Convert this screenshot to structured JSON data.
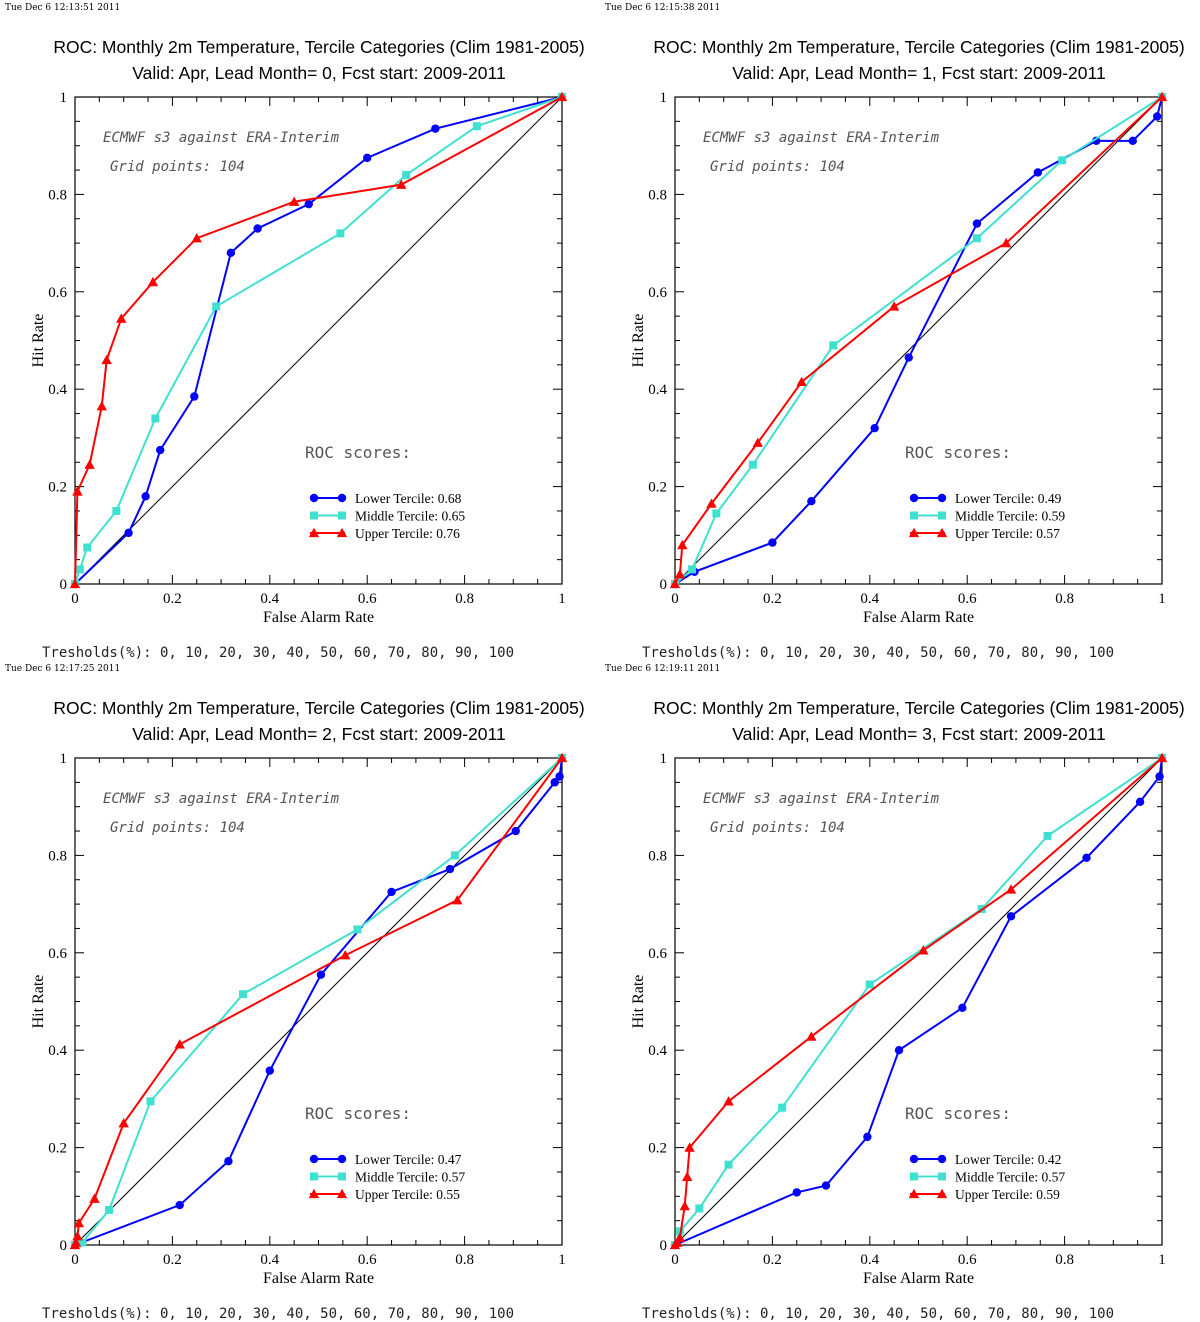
{
  "threshold_prefix": "Tresholds(%): ",
  "thresholds": [
    0,
    10,
    20,
    30,
    40,
    50,
    60,
    70,
    80,
    90,
    100
  ],
  "roc_scores_label": "ROC scores:",
  "colors": {
    "lower": "#0000ff",
    "middle": "#40e0d0",
    "upper": "#ff0000",
    "diagonal": "#000000"
  },
  "chart_data": [
    {
      "type": "line",
      "timestamp": "Tue Dec  6 12:13:51 2011",
      "title": "ROC: Monthly 2m Temperature, Tercile Categories (Clim 1981-2005)",
      "subtitle": "Valid: Apr, Lead Month= 0, Fcst start: 2009-2011",
      "xlabel": "False Alarm Rate",
      "ylabel": "Hit Rate",
      "xlim": [
        0,
        1
      ],
      "ylim": [
        0,
        1
      ],
      "xticks": [
        "0",
        "0.2",
        "0.4",
        "0.6",
        "0.8",
        "1"
      ],
      "yticks": [
        "0",
        "0.2",
        "0.4",
        "0.6",
        "0.8",
        "1"
      ],
      "annotations": [
        "ECMWF s3 against ERA-Interim",
        "Grid points:  104"
      ],
      "legend_position": "lower-right",
      "series": [
        {
          "name": "Lower Tercile: 0.68",
          "marker": "circle",
          "x": [
            0,
            0.11,
            0.145,
            0.175,
            0.245,
            0.32,
            0.375,
            0.48,
            0.6,
            0.74,
            1
          ],
          "y": [
            0,
            0.105,
            0.18,
            0.275,
            0.385,
            0.68,
            0.73,
            0.78,
            0.875,
            0.935,
            1
          ]
        },
        {
          "name": "Middle Tercile: 0.65",
          "marker": "square",
          "x": [
            0,
            0.01,
            0.025,
            0.085,
            0.165,
            0.29,
            0.545,
            0.68,
            0.825,
            1
          ],
          "y": [
            0,
            0.03,
            0.075,
            0.15,
            0.34,
            0.57,
            0.72,
            0.84,
            0.94,
            1
          ]
        },
        {
          "name": "Upper Tercile: 0.76",
          "marker": "triangle",
          "x": [
            0,
            0.005,
            0.03,
            0.055,
            0.065,
            0.095,
            0.16,
            0.25,
            0.45,
            0.67,
            1
          ],
          "y": [
            0,
            0.19,
            0.245,
            0.365,
            0.46,
            0.545,
            0.62,
            0.71,
            0.785,
            0.82,
            1
          ]
        }
      ]
    },
    {
      "type": "line",
      "timestamp": "Tue Dec  6 12:15:38 2011",
      "title": "ROC: Monthly 2m Temperature, Tercile Categories (Clim 1981-2005)",
      "subtitle": "Valid: Apr, Lead Month= 1, Fcst start: 2009-2011",
      "xlabel": "False Alarm Rate",
      "ylabel": "Hit Rate",
      "xlim": [
        0,
        1
      ],
      "ylim": [
        0,
        1
      ],
      "xticks": [
        "0",
        "0.2",
        "0.4",
        "0.6",
        "0.8",
        "1"
      ],
      "yticks": [
        "0",
        "0.2",
        "0.4",
        "0.6",
        "0.8",
        "1"
      ],
      "annotations": [
        "ECMWF s3 against ERA-Interim",
        "Grid points:  104"
      ],
      "legend_position": "lower-right",
      "series": [
        {
          "name": "Lower Tercile: 0.49",
          "marker": "circle",
          "x": [
            0,
            0.04,
            0.2,
            0.28,
            0.41,
            0.48,
            0.62,
            0.745,
            0.865,
            0.94,
            0.99,
            1
          ],
          "y": [
            0,
            0.025,
            0.085,
            0.17,
            0.32,
            0.465,
            0.74,
            0.845,
            0.91,
            0.91,
            0.96,
            1
          ]
        },
        {
          "name": "Middle Tercile: 0.59",
          "marker": "square",
          "x": [
            0,
            0.035,
            0.085,
            0.16,
            0.325,
            0.62,
            0.795,
            1
          ],
          "y": [
            0,
            0.03,
            0.145,
            0.245,
            0.49,
            0.71,
            0.87,
            1
          ]
        },
        {
          "name": "Upper Tercile: 0.57",
          "marker": "triangle",
          "x": [
            0,
            0.01,
            0.015,
            0.075,
            0.17,
            0.26,
            0.45,
            0.68,
            1
          ],
          "y": [
            0,
            0.02,
            0.08,
            0.165,
            0.29,
            0.415,
            0.57,
            0.7,
            1
          ]
        }
      ]
    },
    {
      "type": "line",
      "timestamp": "Tue Dec  6 12:17:25 2011",
      "title": "ROC: Monthly 2m Temperature, Tercile Categories (Clim 1981-2005)",
      "subtitle": "Valid: Apr, Lead Month= 2, Fcst start: 2009-2011",
      "xlabel": "False Alarm Rate",
      "ylabel": "Hit Rate",
      "xlim": [
        0,
        1
      ],
      "ylim": [
        0,
        1
      ],
      "xticks": [
        "0",
        "0.2",
        "0.4",
        "0.6",
        "0.8",
        "1"
      ],
      "yticks": [
        "0",
        "0.2",
        "0.4",
        "0.6",
        "0.8",
        "1"
      ],
      "annotations": [
        "ECMWF s3 against ERA-Interim",
        "Grid points:  104"
      ],
      "legend_position": "lower-right",
      "series": [
        {
          "name": "Lower Tercile: 0.47",
          "marker": "circle",
          "x": [
            0,
            0.215,
            0.315,
            0.4,
            0.505,
            0.65,
            0.77,
            0.905,
            0.985,
            0.995,
            1
          ],
          "y": [
            0,
            0.082,
            0.172,
            0.358,
            0.555,
            0.725,
            0.772,
            0.85,
            0.95,
            0.962,
            1
          ]
        },
        {
          "name": "Middle Tercile: 0.57",
          "marker": "square",
          "x": [
            0,
            0.015,
            0.07,
            0.155,
            0.345,
            0.58,
            0.78,
            1
          ],
          "y": [
            0,
            0.005,
            0.072,
            0.295,
            0.515,
            0.648,
            0.8,
            1
          ]
        },
        {
          "name": "Upper Tercile: 0.55",
          "marker": "triangle",
          "x": [
            0,
            0.002,
            0.005,
            0.008,
            0.04,
            0.1,
            0.215,
            0.555,
            0.785,
            1
          ],
          "y": [
            0,
            0.005,
            0.018,
            0.045,
            0.095,
            0.25,
            0.412,
            0.595,
            0.708,
            1
          ]
        }
      ]
    },
    {
      "type": "line",
      "timestamp": "Tue Dec  6 12:19:11 2011",
      "title": "ROC: Monthly 2m Temperature, Tercile Categories (Clim 1981-2005)",
      "subtitle": "Valid: Apr, Lead Month= 3, Fcst start: 2009-2011",
      "xlabel": "False Alarm Rate",
      "ylabel": "Hit Rate",
      "xlim": [
        0,
        1
      ],
      "ylim": [
        0,
        1
      ],
      "xticks": [
        "0",
        "0.2",
        "0.4",
        "0.6",
        "0.8",
        "1"
      ],
      "yticks": [
        "0",
        "0.2",
        "0.4",
        "0.6",
        "0.8",
        "1"
      ],
      "annotations": [
        "ECMWF s3 against ERA-Interim",
        "Grid points:  104"
      ],
      "legend_position": "lower-right",
      "series": [
        {
          "name": "Lower Tercile: 0.42",
          "marker": "circle",
          "x": [
            0,
            0.25,
            0.31,
            0.395,
            0.46,
            0.59,
            0.69,
            0.845,
            0.955,
            0.995,
            1
          ],
          "y": [
            0,
            0.108,
            0.122,
            0.222,
            0.4,
            0.487,
            0.675,
            0.795,
            0.91,
            0.962,
            1
          ]
        },
        {
          "name": "Middle Tercile: 0.57",
          "marker": "square",
          "x": [
            0,
            0.01,
            0.05,
            0.11,
            0.22,
            0.4,
            0.63,
            0.765,
            1
          ],
          "y": [
            0,
            0.028,
            0.075,
            0.165,
            0.282,
            0.535,
            0.69,
            0.84,
            1
          ]
        },
        {
          "name": "Upper Tercile: 0.59",
          "marker": "triangle",
          "x": [
            0,
            0.005,
            0.01,
            0.02,
            0.025,
            0.03,
            0.11,
            0.28,
            0.51,
            0.69,
            1
          ],
          "y": [
            0,
            0.005,
            0.015,
            0.08,
            0.14,
            0.2,
            0.295,
            0.428,
            0.605,
            0.73,
            1
          ]
        }
      ]
    }
  ]
}
